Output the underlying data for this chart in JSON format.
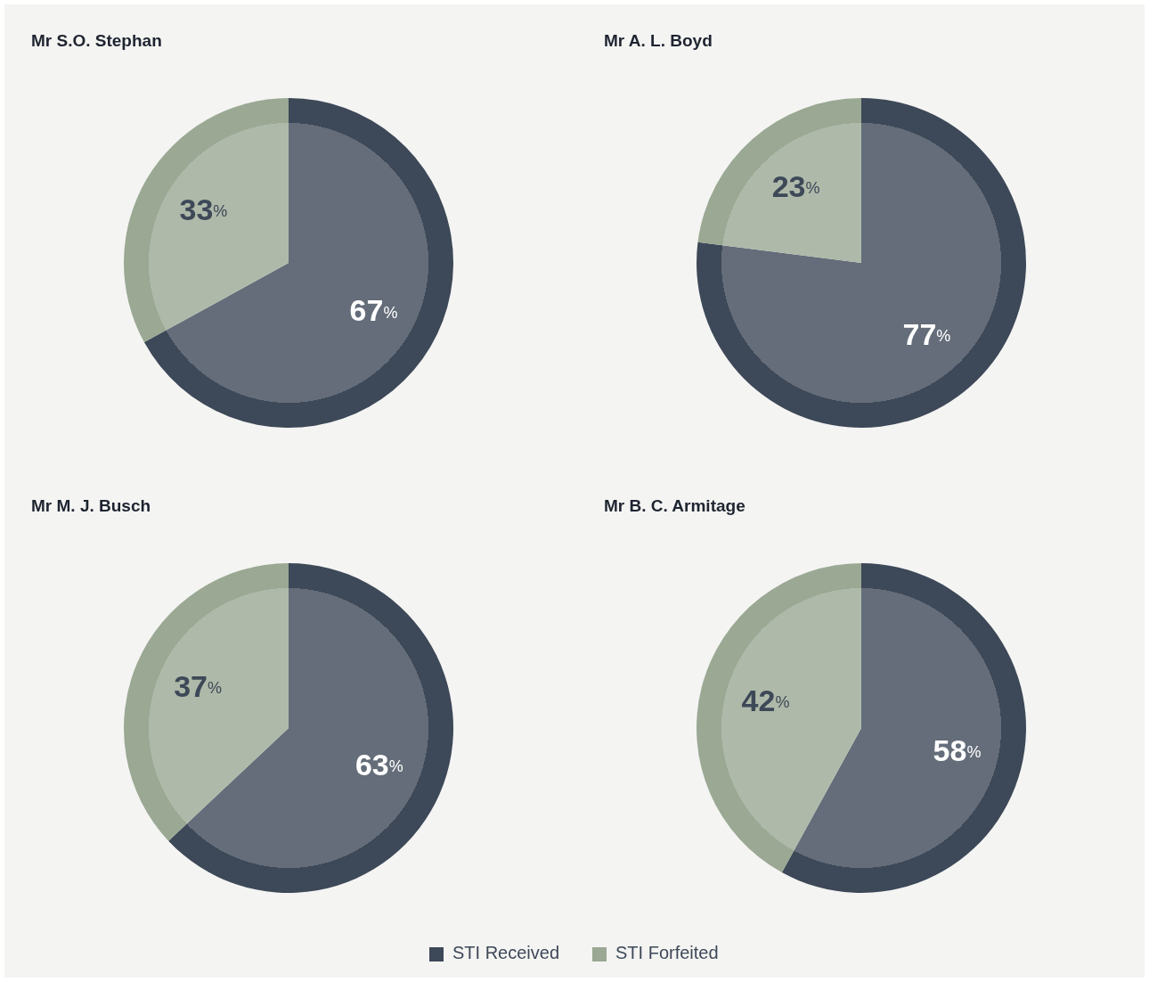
{
  "chart_data": [
    {
      "type": "pie",
      "title": "Mr S.O. Stephan",
      "categories": [
        "STI Received",
        "STI Forfeited"
      ],
      "values": [
        67,
        33
      ],
      "value_labels": [
        "67%",
        "33%"
      ],
      "colors": [
        "#3d4858",
        "#9aa894"
      ],
      "legend": "bottom"
    },
    {
      "type": "pie",
      "title": "Mr A. L. Boyd",
      "categories": [
        null,
        null
      ],
      "values": [
        77,
        23
      ],
      "value_labels": [
        "77%",
        "23%"
      ],
      "colors": [
        "#3d4858",
        "#9aa894"
      ]
    },
    {
      "type": "pie",
      "title": "Mr M. J. Busch",
      "categories": [
        null,
        null
      ],
      "values": [
        63,
        37
      ],
      "value_labels": [
        "63%",
        "37%"
      ],
      "colors": [
        "#3d4858",
        "#9aa894"
      ]
    },
    {
      "type": "pie",
      "title": "Mr B. C. Armitage",
      "categories": [
        null,
        null
      ],
      "values": [
        58,
        42
      ],
      "value_labels": [
        "58%",
        "42%"
      ],
      "colors": [
        "#3d4858",
        "#9aa894"
      ]
    }
  ]
}
